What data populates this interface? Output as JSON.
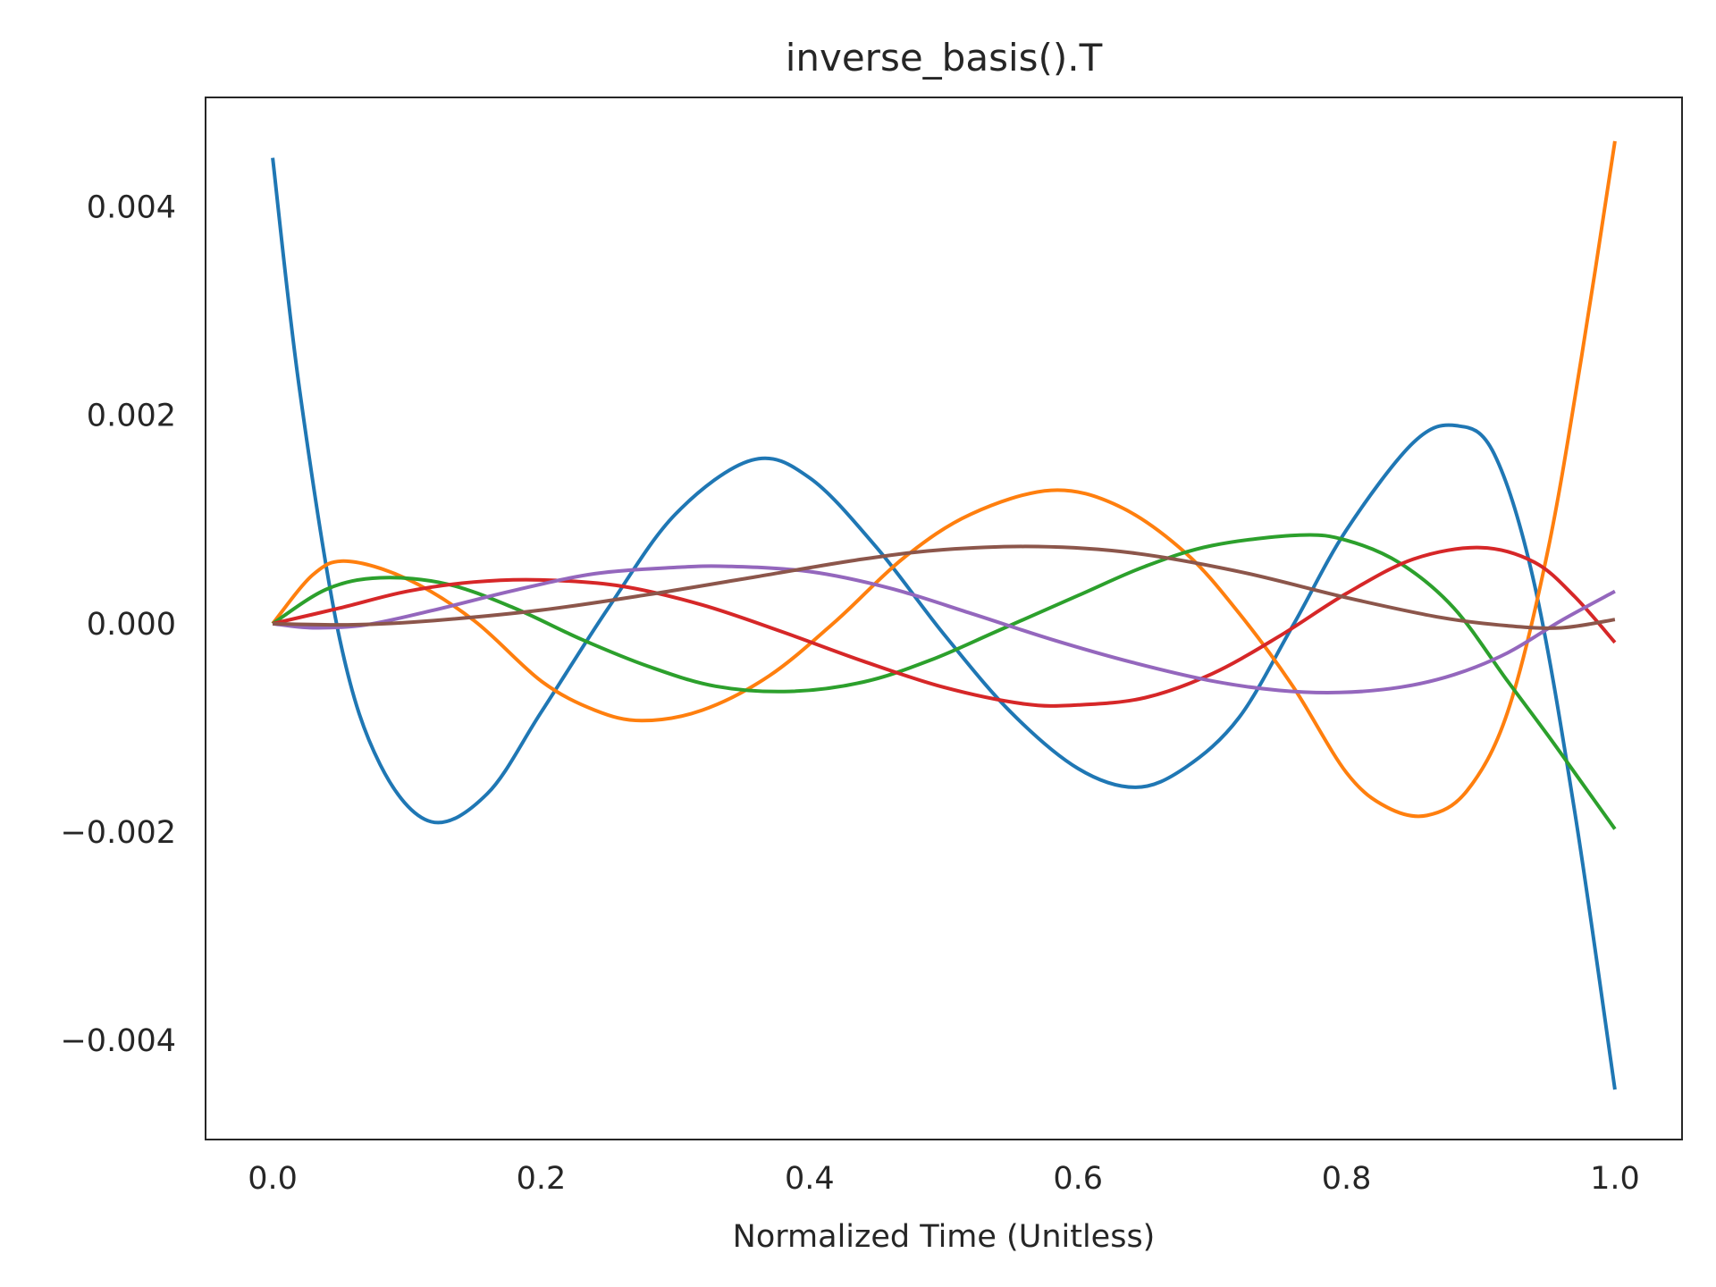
{
  "chart_data": {
    "type": "line",
    "title": "inverse_basis().T",
    "xlabel": "Normalized Time (Unitless)",
    "ylabel": "",
    "xlim": [
      -0.05,
      1.05
    ],
    "ylim": [
      -0.00495,
      0.00505
    ],
    "x_ticks": [
      0.0,
      0.2,
      0.4,
      0.6,
      0.8,
      1.0
    ],
    "x_tick_labels": [
      "0.0",
      "0.2",
      "0.4",
      "0.6",
      "0.8",
      "1.0"
    ],
    "y_ticks": [
      0.004,
      0.002,
      0.0,
      -0.002,
      -0.004
    ],
    "y_tick_labels": [
      "0.004",
      "0.002",
      "0.000",
      "−0.002",
      "−0.004"
    ],
    "grid": false,
    "legend": "none",
    "series": [
      {
        "color": "#1f77b4",
        "x": [
          0.0,
          0.02,
          0.05,
          0.08,
          0.118,
          0.16,
          0.2,
          0.25,
          0.3,
          0.357,
          0.4,
          0.45,
          0.5,
          0.55,
          0.6,
          0.643,
          0.68,
          0.72,
          0.76,
          0.8,
          0.85,
          0.882,
          0.91,
          0.94,
          0.97,
          1.0
        ],
        "y": [
          0.00447,
          0.00225,
          -0.00015,
          -0.00135,
          -0.0019,
          -0.00163,
          -0.00085,
          0.00015,
          0.00105,
          0.00157,
          0.0014,
          0.00073,
          -0.0001,
          -0.00085,
          -0.00139,
          -0.00157,
          -0.00138,
          -0.0009,
          -2e-05,
          0.0009,
          0.00174,
          0.0019,
          0.00163,
          0.00038,
          -0.0018,
          -0.00447
        ]
      },
      {
        "color": "#ff7f0e",
        "x": [
          0.0,
          0.03,
          0.055,
          0.1,
          0.15,
          0.2,
          0.24,
          0.275,
          0.32,
          0.37,
          0.42,
          0.47,
          0.52,
          0.58,
          0.63,
          0.68,
          0.72,
          0.76,
          0.8,
          0.83,
          0.86,
          0.89,
          0.92,
          0.95,
          0.975,
          1.0
        ],
        "y": [
          0.0,
          0.00047,
          0.0006,
          0.00043,
          3e-05,
          -0.00055,
          -0.00083,
          -0.00093,
          -0.00083,
          -0.0005,
          3e-05,
          0.00063,
          0.00105,
          0.00128,
          0.00113,
          0.00068,
          0.0001,
          -0.0006,
          -0.00143,
          -0.00176,
          -0.00184,
          -0.0016,
          -0.00085,
          0.0007,
          0.00255,
          0.00463
        ]
      },
      {
        "color": "#2ca02c",
        "x": [
          0.0,
          0.04,
          0.08,
          0.13,
          0.18,
          0.23,
          0.28,
          0.33,
          0.385,
          0.44,
          0.49,
          0.54,
          0.6,
          0.65,
          0.7,
          0.765,
          0.8,
          0.84,
          0.88,
          0.92,
          0.95,
          0.975,
          1.0
        ],
        "y": [
          0.0,
          0.00033,
          0.00044,
          0.00038,
          0.00015,
          -0.00015,
          -0.00041,
          -0.0006,
          -0.00065,
          -0.00056,
          -0.00035,
          -7e-05,
          0.00027,
          0.00055,
          0.00075,
          0.00085,
          0.0008,
          0.00058,
          0.00015,
          -0.00055,
          -0.00107,
          -0.00152,
          -0.00197
        ]
      },
      {
        "color": "#d62728",
        "x": [
          0.0,
          0.05,
          0.1,
          0.15,
          0.2,
          0.26,
          0.32,
          0.38,
          0.44,
          0.5,
          0.56,
          0.6,
          0.65,
          0.7,
          0.75,
          0.8,
          0.85,
          0.9,
          0.94,
          0.97,
          1.0
        ],
        "y": [
          0.0,
          0.00015,
          0.00031,
          0.0004,
          0.00042,
          0.00036,
          0.00018,
          -8e-05,
          -0.00036,
          -0.00061,
          -0.00077,
          -0.00078,
          -0.00071,
          -0.00048,
          -0.00012,
          0.00029,
          0.00062,
          0.00073,
          0.00059,
          0.00026,
          -0.00018
        ]
      },
      {
        "color": "#9467bd",
        "x": [
          0.0,
          0.03,
          0.07,
          0.12,
          0.18,
          0.24,
          0.3,
          0.34,
          0.4,
          0.46,
          0.52,
          0.58,
          0.64,
          0.7,
          0.75,
          0.795,
          0.84,
          0.88,
          0.92,
          0.96,
          1.0
        ],
        "y": [
          0.0,
          -4e-05,
          -1e-05,
          0.00013,
          0.00032,
          0.00048,
          0.00054,
          0.00055,
          0.0005,
          0.00034,
          0.0001,
          -0.00015,
          -0.00037,
          -0.00055,
          -0.00064,
          -0.00066,
          -0.00061,
          -0.00049,
          -0.00028,
          3e-05,
          0.00031
        ]
      },
      {
        "color": "#8c564b",
        "x": [
          0.0,
          0.06,
          0.12,
          0.2,
          0.28,
          0.36,
          0.44,
          0.5,
          0.57,
          0.64,
          0.72,
          0.8,
          0.87,
          0.92,
          0.96,
          1.0
        ],
        "y": [
          0.0,
          -1e-05,
          3e-05,
          0.00013,
          0.00028,
          0.00045,
          0.00062,
          0.00071,
          0.00074,
          0.00068,
          0.0005,
          0.00025,
          6e-05,
          -2e-05,
          -4e-05,
          4e-05
        ]
      }
    ]
  }
}
